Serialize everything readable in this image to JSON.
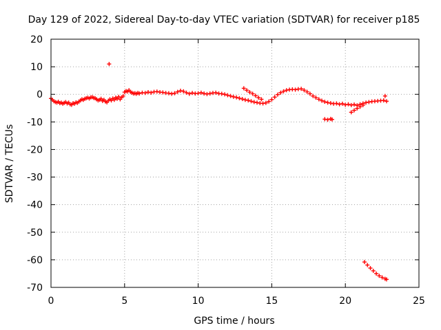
{
  "chart_data": {
    "type": "scatter",
    "title": "Day 129 of 2022, Sidereal Day-to-day VTEC variation (SDTVAR) for receiver p185",
    "xlabel": "GPS time / hours",
    "ylabel": "SDTVAR / TECUs",
    "xlim": [
      0,
      25
    ],
    "ylim": [
      -70,
      20
    ],
    "xticks": [
      "0",
      "5",
      "10",
      "15",
      "20",
      "25"
    ],
    "yticks": [
      "20",
      "10",
      "0",
      "-10",
      "-20",
      "-30",
      "-40",
      "-50",
      "-60",
      "-70"
    ],
    "grid": true,
    "marker": "plus",
    "color": "#ff0000",
    "series": [
      {
        "name": "SDTVAR",
        "points": [
          [
            0.0,
            -1.5
          ],
          [
            0.1,
            -2.0
          ],
          [
            0.2,
            -2.5
          ],
          [
            0.3,
            -2.8
          ],
          [
            0.4,
            -3.0
          ],
          [
            0.5,
            -2.7
          ],
          [
            0.6,
            -3.2
          ],
          [
            0.7,
            -3.0
          ],
          [
            0.8,
            -3.4
          ],
          [
            0.9,
            -3.1
          ],
          [
            1.0,
            -2.8
          ],
          [
            1.1,
            -3.3
          ],
          [
            1.2,
            -3.0
          ],
          [
            1.3,
            -3.6
          ],
          [
            1.4,
            -3.8
          ],
          [
            1.5,
            -3.2
          ],
          [
            1.6,
            -3.4
          ],
          [
            1.7,
            -2.9
          ],
          [
            1.8,
            -3.1
          ],
          [
            1.9,
            -2.6
          ],
          [
            2.0,
            -2.2
          ],
          [
            2.1,
            -1.8
          ],
          [
            2.2,
            -2.0
          ],
          [
            2.3,
            -1.6
          ],
          [
            2.4,
            -1.4
          ],
          [
            2.5,
            -1.2
          ],
          [
            2.6,
            -1.5
          ],
          [
            2.7,
            -1.1
          ],
          [
            2.8,
            -1.0
          ],
          [
            2.9,
            -1.3
          ],
          [
            3.0,
            -1.4
          ],
          [
            3.1,
            -1.8
          ],
          [
            3.2,
            -2.2
          ],
          [
            3.3,
            -2.0
          ],
          [
            3.4,
            -1.6
          ],
          [
            3.5,
            -2.4
          ],
          [
            3.6,
            -2.0
          ],
          [
            3.7,
            -2.6
          ],
          [
            3.8,
            -2.9
          ],
          [
            3.9,
            -2.3
          ],
          [
            4.0,
            -1.8
          ],
          [
            4.1,
            -2.2
          ],
          [
            4.2,
            -1.5
          ],
          [
            4.3,
            -2.0
          ],
          [
            4.4,
            -1.2
          ],
          [
            4.5,
            -1.6
          ],
          [
            4.6,
            -0.9
          ],
          [
            4.7,
            -1.8
          ],
          [
            4.8,
            -1.1
          ],
          [
            4.9,
            -0.6
          ],
          [
            3.95,
            11.0
          ],
          [
            5.0,
            0.8
          ],
          [
            5.1,
            1.2
          ],
          [
            5.2,
            1.0
          ],
          [
            5.3,
            1.5
          ],
          [
            5.4,
            0.9
          ],
          [
            5.5,
            0.6
          ],
          [
            5.6,
            0.3
          ],
          [
            5.7,
            0.4
          ],
          [
            5.8,
            0.2
          ],
          [
            5.9,
            0.5
          ],
          [
            6.0,
            0.3
          ],
          [
            6.2,
            0.6
          ],
          [
            6.4,
            0.5
          ],
          [
            6.6,
            0.8
          ],
          [
            6.8,
            0.6
          ],
          [
            7.0,
            0.9
          ],
          [
            7.2,
            1.0
          ],
          [
            7.4,
            0.8
          ],
          [
            7.6,
            0.7
          ],
          [
            7.8,
            0.5
          ],
          [
            8.0,
            0.4
          ],
          [
            8.2,
            0.2
          ],
          [
            8.4,
            0.4
          ],
          [
            8.6,
            0.9
          ],
          [
            8.8,
            1.3
          ],
          [
            9.0,
            1.1
          ],
          [
            9.2,
            0.6
          ],
          [
            9.4,
            0.2
          ],
          [
            9.6,
            0.5
          ],
          [
            9.8,
            0.3
          ],
          [
            10.0,
            0.4
          ],
          [
            10.2,
            0.6
          ],
          [
            10.4,
            0.3
          ],
          [
            10.6,
            0.1
          ],
          [
            10.8,
            0.3
          ],
          [
            11.0,
            0.5
          ],
          [
            11.2,
            0.6
          ],
          [
            11.4,
            0.3
          ],
          [
            11.6,
            0.2
          ],
          [
            11.8,
            0.0
          ],
          [
            12.0,
            -0.3
          ],
          [
            12.2,
            -0.6
          ],
          [
            12.4,
            -0.9
          ],
          [
            12.6,
            -1.1
          ],
          [
            12.8,
            -1.4
          ],
          [
            13.0,
            -1.7
          ],
          [
            13.2,
            -2.0
          ],
          [
            13.4,
            -2.2
          ],
          [
            13.6,
            -2.5
          ],
          [
            13.8,
            -2.8
          ],
          [
            14.0,
            -3.0
          ],
          [
            14.2,
            -3.2
          ],
          [
            14.4,
            -3.3
          ],
          [
            14.6,
            -3.1
          ],
          [
            14.8,
            -2.6
          ],
          [
            15.0,
            -1.9
          ],
          [
            13.1,
            2.2
          ],
          [
            13.3,
            1.5
          ],
          [
            13.5,
            0.8
          ],
          [
            13.7,
            0.2
          ],
          [
            13.9,
            -0.5
          ],
          [
            14.1,
            -1.2
          ],
          [
            14.3,
            -1.8
          ],
          [
            15.2,
            -1.0
          ],
          [
            15.4,
            -0.1
          ],
          [
            15.6,
            0.6
          ],
          [
            15.8,
            1.1
          ],
          [
            16.0,
            1.5
          ],
          [
            16.2,
            1.7
          ],
          [
            16.4,
            1.8
          ],
          [
            16.6,
            1.7
          ],
          [
            16.8,
            1.9
          ],
          [
            17.0,
            2.0
          ],
          [
            17.2,
            1.5
          ],
          [
            17.4,
            0.9
          ],
          [
            17.6,
            0.2
          ],
          [
            17.8,
            -0.6
          ],
          [
            18.0,
            -1.2
          ],
          [
            18.2,
            -1.8
          ],
          [
            18.4,
            -2.3
          ],
          [
            18.6,
            -2.7
          ],
          [
            18.8,
            -3.0
          ],
          [
            19.0,
            -3.2
          ],
          [
            18.6,
            -9.0
          ],
          [
            18.8,
            -9.2
          ],
          [
            19.0,
            -8.9
          ],
          [
            19.1,
            -9.1
          ],
          [
            19.2,
            -3.4
          ],
          [
            19.4,
            -3.3
          ],
          [
            19.6,
            -3.6
          ],
          [
            19.8,
            -3.4
          ],
          [
            20.0,
            -3.8
          ],
          [
            20.2,
            -3.6
          ],
          [
            20.4,
            -3.9
          ],
          [
            20.6,
            -3.7
          ],
          [
            20.8,
            -4.0
          ],
          [
            21.0,
            -3.6
          ],
          [
            20.4,
            -6.5
          ],
          [
            20.6,
            -5.8
          ],
          [
            20.8,
            -5.1
          ],
          [
            21.0,
            -4.5
          ],
          [
            21.2,
            -3.9
          ],
          [
            21.2,
            -3.3
          ],
          [
            21.4,
            -3.0
          ],
          [
            21.6,
            -2.8
          ],
          [
            21.8,
            -2.6
          ],
          [
            22.0,
            -2.5
          ],
          [
            22.2,
            -2.4
          ],
          [
            22.4,
            -2.3
          ],
          [
            22.6,
            -2.2
          ],
          [
            22.7,
            -0.6
          ],
          [
            22.8,
            -2.5
          ],
          [
            21.3,
            -60.8
          ],
          [
            21.5,
            -61.9
          ],
          [
            21.7,
            -63.0
          ],
          [
            21.9,
            -64.0
          ],
          [
            22.1,
            -65.0
          ],
          [
            22.3,
            -65.8
          ],
          [
            22.5,
            -66.4
          ],
          [
            22.7,
            -66.9
          ],
          [
            22.8,
            -67.1
          ]
        ]
      }
    ]
  }
}
